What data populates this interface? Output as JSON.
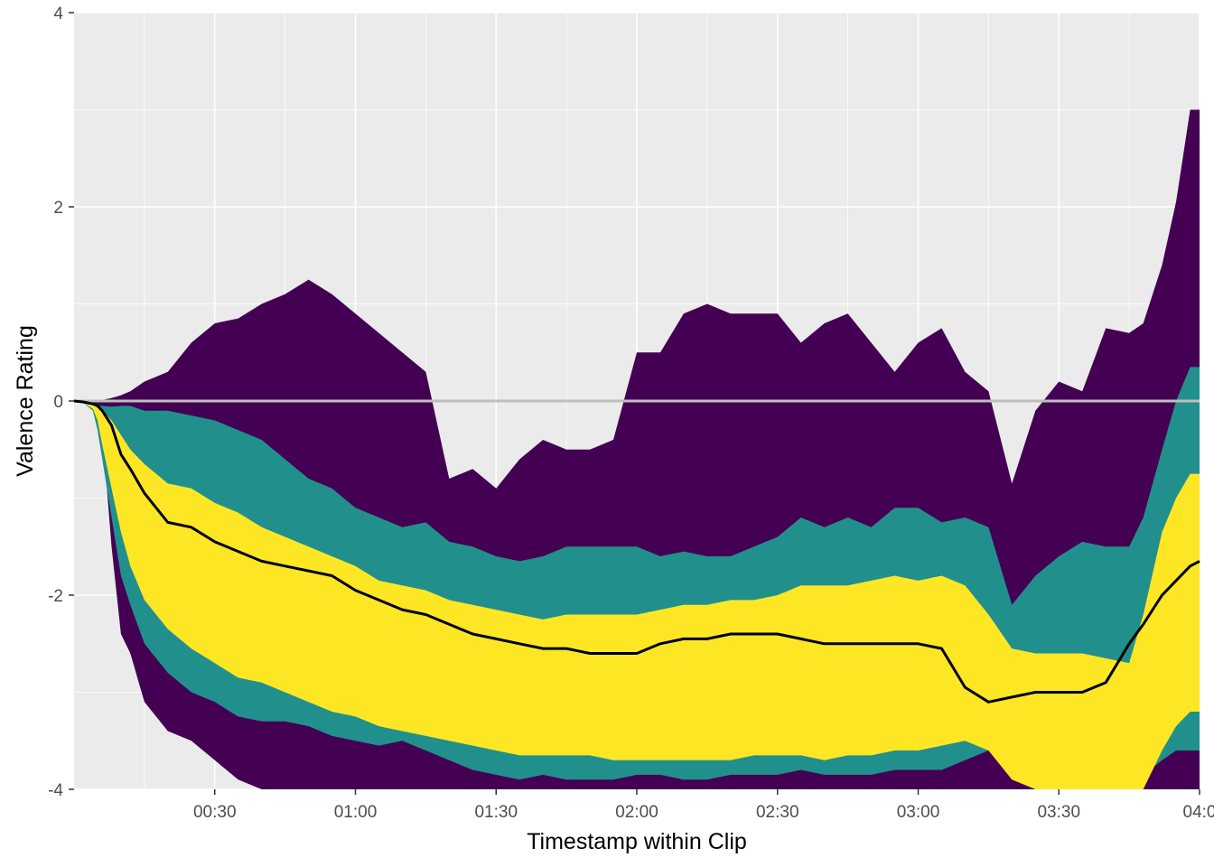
{
  "chart_data": {
    "type": "area",
    "title": "",
    "xlabel": "Timestamp within Clip",
    "ylabel": "Valence Rating",
    "x_unit": "seconds",
    "xlim": [
      0,
      240
    ],
    "ylim": [
      -4,
      4
    ],
    "x_ticks": [
      {
        "value": 30,
        "label": "00:30"
      },
      {
        "value": 60,
        "label": "01:00"
      },
      {
        "value": 90,
        "label": "01:30"
      },
      {
        "value": 120,
        "label": "02:00"
      },
      {
        "value": 150,
        "label": "02:30"
      },
      {
        "value": 180,
        "label": "03:00"
      },
      {
        "value": 210,
        "label": "03:30"
      },
      {
        "value": 240,
        "label": "04:0"
      }
    ],
    "y_ticks": [
      {
        "value": -4,
        "label": "-4"
      },
      {
        "value": -2,
        "label": "-2"
      },
      {
        "value": 0,
        "label": "0"
      },
      {
        "value": 2,
        "label": "2"
      },
      {
        "value": 4,
        "label": "4"
      }
    ],
    "reference_line": {
      "y": 0,
      "color": "#bebebe"
    },
    "grid": true,
    "legend": "none",
    "x": [
      0,
      2,
      4,
      5,
      6,
      8,
      10,
      12,
      15,
      20,
      25,
      30,
      35,
      40,
      45,
      50,
      55,
      60,
      65,
      70,
      75,
      80,
      85,
      90,
      95,
      100,
      105,
      110,
      115,
      120,
      125,
      130,
      135,
      140,
      145,
      150,
      155,
      160,
      165,
      170,
      175,
      180,
      185,
      190,
      195,
      200,
      205,
      210,
      215,
      220,
      225,
      228,
      232,
      235,
      238,
      240
    ],
    "bands": [
      {
        "name": "outer",
        "color": "#440154",
        "upper": [
          0,
          0,
          0,
          0,
          0.01,
          0.03,
          0.06,
          0.1,
          0.2,
          0.3,
          0.6,
          0.8,
          0.85,
          1.0,
          1.1,
          1.25,
          1.1,
          0.9,
          0.7,
          0.5,
          0.3,
          -0.8,
          -0.7,
          -0.9,
          -0.6,
          -0.4,
          -0.5,
          -0.5,
          -0.4,
          0.5,
          0.5,
          0.9,
          1.0,
          0.9,
          0.9,
          0.9,
          0.6,
          0.8,
          0.9,
          0.6,
          0.3,
          0.6,
          0.75,
          0.3,
          0.1,
          -0.85,
          -0.1,
          0.2,
          0.1,
          0.75,
          0.7,
          0.8,
          1.4,
          2.05,
          3.0,
          3.0
        ],
        "lower": [
          0,
          0,
          -0.05,
          -0.1,
          -0.3,
          -1.5,
          -2.4,
          -2.6,
          -3.1,
          -3.4,
          -3.5,
          -3.7,
          -3.9,
          -4.0,
          -4.0,
          -4.0,
          -4.0,
          -4.0,
          -4.0,
          -4.0,
          -4.0,
          -4.0,
          -4.0,
          -4.0,
          -4.0,
          -4.0,
          -4.0,
          -4.0,
          -4.0,
          -4.0,
          -4.0,
          -4.0,
          -4.0,
          -4.0,
          -4.0,
          -4.0,
          -4.0,
          -4.0,
          -4.0,
          -4.0,
          -4.0,
          -4.0,
          -4.0,
          -4.0,
          -4.0,
          -4.0,
          -4.0,
          -4.0,
          -4.0,
          -4.0,
          -4.0,
          -4.0,
          -4.0,
          -4.0,
          -4.0,
          -4.0
        ]
      },
      {
        "name": "middle",
        "color": "#21908c",
        "upper": [
          0,
          0,
          -0.02,
          -0.05,
          -0.05,
          -0.06,
          -0.05,
          -0.05,
          -0.1,
          -0.1,
          -0.15,
          -0.2,
          -0.3,
          -0.4,
          -0.6,
          -0.8,
          -0.9,
          -1.1,
          -1.2,
          -1.3,
          -1.25,
          -1.45,
          -1.5,
          -1.6,
          -1.65,
          -1.6,
          -1.5,
          -1.5,
          -1.5,
          -1.5,
          -1.6,
          -1.55,
          -1.6,
          -1.6,
          -1.5,
          -1.4,
          -1.2,
          -1.3,
          -1.2,
          -1.3,
          -1.1,
          -1.1,
          -1.25,
          -1.2,
          -1.3,
          -2.1,
          -1.8,
          -1.6,
          -1.45,
          -1.5,
          -1.5,
          -1.2,
          -0.5,
          0.0,
          0.35,
          0.35
        ],
        "lower": [
          0,
          -0.02,
          -0.1,
          -0.3,
          -0.6,
          -1.2,
          -1.8,
          -2.1,
          -2.5,
          -2.8,
          -3.0,
          -3.1,
          -3.25,
          -3.3,
          -3.3,
          -3.35,
          -3.45,
          -3.5,
          -3.55,
          -3.5,
          -3.6,
          -3.7,
          -3.8,
          -3.85,
          -3.9,
          -3.85,
          -3.9,
          -3.9,
          -3.9,
          -3.85,
          -3.85,
          -3.9,
          -3.9,
          -3.85,
          -3.85,
          -3.85,
          -3.8,
          -3.85,
          -3.85,
          -3.85,
          -3.8,
          -3.8,
          -3.8,
          -3.7,
          -3.6,
          -3.8,
          -3.9,
          -3.95,
          -4.0,
          -4.0,
          -3.9,
          -3.85,
          -3.7,
          -3.6,
          -3.6,
          -3.6
        ]
      },
      {
        "name": "inner",
        "color": "#fde725",
        "upper": [
          0,
          0,
          -0.02,
          -0.05,
          -0.1,
          -0.2,
          -0.35,
          -0.5,
          -0.65,
          -0.85,
          -0.9,
          -1.05,
          -1.15,
          -1.3,
          -1.4,
          -1.5,
          -1.6,
          -1.7,
          -1.85,
          -1.9,
          -1.95,
          -2.05,
          -2.1,
          -2.15,
          -2.2,
          -2.25,
          -2.2,
          -2.2,
          -2.2,
          -2.2,
          -2.15,
          -2.1,
          -2.1,
          -2.05,
          -2.05,
          -2.0,
          -1.9,
          -1.9,
          -1.9,
          -1.85,
          -1.8,
          -1.85,
          -1.8,
          -1.9,
          -2.2,
          -2.55,
          -2.6,
          -2.6,
          -2.6,
          -2.65,
          -2.7,
          -2.2,
          -1.35,
          -1.0,
          -0.75,
          -0.75
        ],
        "lower": [
          0,
          -0.02,
          -0.08,
          -0.2,
          -0.45,
          -0.9,
          -1.35,
          -1.7,
          -2.05,
          -2.35,
          -2.55,
          -2.7,
          -2.85,
          -2.9,
          -3.0,
          -3.1,
          -3.2,
          -3.25,
          -3.35,
          -3.4,
          -3.45,
          -3.5,
          -3.55,
          -3.6,
          -3.65,
          -3.65,
          -3.65,
          -3.65,
          -3.7,
          -3.7,
          -3.7,
          -3.7,
          -3.7,
          -3.7,
          -3.65,
          -3.65,
          -3.65,
          -3.7,
          -3.65,
          -3.65,
          -3.6,
          -3.6,
          -3.55,
          -3.5,
          -3.6,
          -3.9,
          -4.0,
          -4.0,
          -4.0,
          -4.0,
          -4.0,
          -4.0,
          -3.6,
          -3.35,
          -3.2,
          -3.2
        ]
      }
    ],
    "mean_line": {
      "color": "#000000",
      "values": [
        0,
        -0.01,
        -0.03,
        -0.05,
        -0.1,
        -0.25,
        -0.55,
        -0.7,
        -0.95,
        -1.25,
        -1.3,
        -1.45,
        -1.55,
        -1.65,
        -1.7,
        -1.75,
        -1.8,
        -1.95,
        -2.05,
        -2.15,
        -2.2,
        -2.3,
        -2.4,
        -2.45,
        -2.5,
        -2.55,
        -2.55,
        -2.6,
        -2.6,
        -2.6,
        -2.5,
        -2.45,
        -2.45,
        -2.4,
        -2.4,
        -2.4,
        -2.45,
        -2.5,
        -2.5,
        -2.5,
        -2.5,
        -2.5,
        -2.55,
        -2.95,
        -3.1,
        -3.05,
        -3.0,
        -3.0,
        -3.0,
        -2.9,
        -2.5,
        -2.3,
        -2.0,
        -1.85,
        -1.7,
        -1.65
      ]
    }
  }
}
